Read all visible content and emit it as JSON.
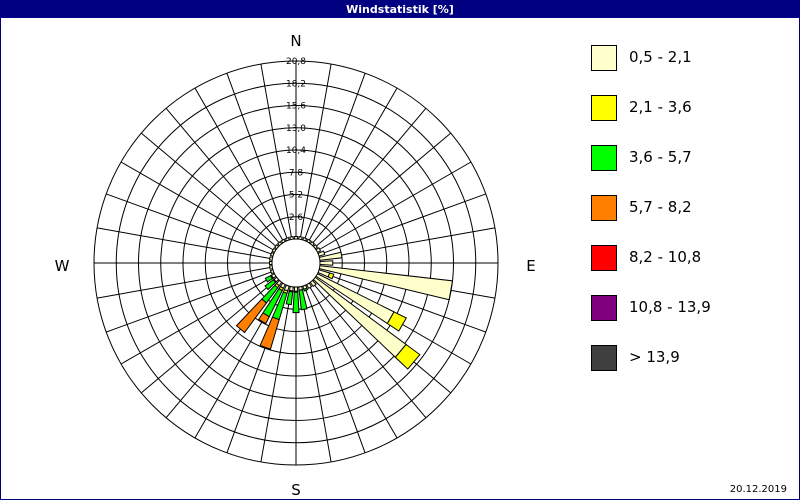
{
  "window": {
    "title": "Windstatistik [%]"
  },
  "footer": {
    "date": "20.12.2019"
  },
  "chart_data": {
    "type": "windrose",
    "title": "Windstatistik [%]",
    "directions": [
      "N",
      "E",
      "S",
      "W"
    ],
    "radial_ticks": [
      "2,6",
      "5,2",
      "7,8",
      "10,4",
      "13,0",
      "15,6",
      "18,2",
      "20,8"
    ],
    "rmax": 20.8,
    "speed_classes": [
      {
        "label": "0,5 - 2,1",
        "color": "#ffffcc"
      },
      {
        "label": "2,1 - 3,6",
        "color": "#ffff00"
      },
      {
        "label": "3,6 - 5,7",
        "color": "#00ff00"
      },
      {
        "label": "5,7 - 8,2",
        "color": "#ff8000"
      },
      {
        "label": "8,2 - 10,8",
        "color": "#ff0000"
      },
      {
        "label": "10,8 - 13,9",
        "color": "#800080"
      },
      {
        "label": " > 13,9",
        "color": "#404040"
      }
    ],
    "sectors": [
      {
        "direction": 0,
        "values": [
          0.3,
          0,
          0,
          0,
          0,
          0,
          0
        ]
      },
      {
        "direction": 10,
        "values": [
          0.3,
          0,
          0,
          0,
          0,
          0,
          0
        ]
      },
      {
        "direction": 20,
        "values": [
          0.3,
          0,
          0,
          0,
          0,
          0,
          0
        ]
      },
      {
        "direction": 30,
        "values": [
          0.3,
          0,
          0,
          0,
          0,
          0,
          0
        ]
      },
      {
        "direction": 40,
        "values": [
          0.3,
          0,
          0,
          0,
          0,
          0,
          0
        ]
      },
      {
        "direction": 50,
        "values": [
          0.3,
          0,
          0,
          0,
          0,
          0,
          0
        ]
      },
      {
        "direction": 60,
        "values": [
          0.4,
          0,
          0,
          0,
          0,
          0,
          0
        ]
      },
      {
        "direction": 70,
        "values": [
          0.7,
          0,
          0,
          0,
          0,
          0,
          0
        ]
      },
      {
        "direction": 80,
        "values": [
          2.6,
          0,
          0,
          0,
          0,
          0,
          0
        ]
      },
      {
        "direction": 90,
        "values": [
          1.5,
          0,
          0,
          0,
          0,
          0,
          0
        ]
      },
      {
        "direction": 100,
        "values": [
          15.6,
          0,
          0,
          0,
          0,
          0,
          0
        ]
      },
      {
        "direction": 110,
        "values": [
          1.3,
          0.5,
          0,
          0,
          0,
          0,
          0
        ]
      },
      {
        "direction": 120,
        "values": [
          10.0,
          1.6,
          0,
          0,
          0,
          0,
          0
        ]
      },
      {
        "direction": 130,
        "values": [
          13.2,
          2.0,
          0,
          0,
          0,
          0,
          0
        ]
      },
      {
        "direction": 140,
        "values": [
          0.6,
          0,
          0,
          0,
          0,
          0,
          0
        ]
      },
      {
        "direction": 150,
        "values": [
          0.5,
          0,
          0,
          0,
          0,
          0,
          0
        ]
      },
      {
        "direction": 160,
        "values": [
          0.4,
          0,
          0.2,
          0,
          0,
          0,
          0
        ]
      },
      {
        "direction": 170,
        "values": [
          0.4,
          0,
          2.3,
          0,
          0,
          0,
          0
        ]
      },
      {
        "direction": 180,
        "values": [
          0.5,
          0.1,
          2.4,
          0,
          0,
          0,
          0
        ]
      },
      {
        "direction": 190,
        "values": [
          0.5,
          0.1,
          1.5,
          0,
          0,
          0,
          0
        ]
      },
      {
        "direction": 200,
        "values": [
          0.6,
          0.3,
          3.2,
          3.6,
          0,
          0,
          0
        ]
      },
      {
        "direction": 210,
        "values": [
          0.5,
          0.3,
          3.4,
          0.9,
          0,
          0,
          0
        ]
      },
      {
        "direction": 220,
        "values": [
          0.5,
          0.3,
          2.2,
          4.3,
          0,
          0,
          0
        ]
      },
      {
        "direction": 230,
        "values": [
          0.4,
          0.1,
          1.2,
          0,
          0,
          0,
          0
        ]
      },
      {
        "direction": 240,
        "values": [
          0.4,
          0.1,
          0.7,
          0,
          0,
          0,
          0
        ]
      },
      {
        "direction": 250,
        "values": [
          0.3,
          0,
          0,
          0,
          0,
          0,
          0
        ]
      },
      {
        "direction": 260,
        "values": [
          0.3,
          0,
          0,
          0,
          0,
          0,
          0
        ]
      },
      {
        "direction": 270,
        "values": [
          0.3,
          0,
          0,
          0,
          0,
          0,
          0
        ]
      },
      {
        "direction": 280,
        "values": [
          0.3,
          0,
          0,
          0,
          0,
          0,
          0
        ]
      },
      {
        "direction": 290,
        "values": [
          0.3,
          0,
          0,
          0,
          0,
          0,
          0
        ]
      },
      {
        "direction": 300,
        "values": [
          0.3,
          0,
          0,
          0,
          0,
          0,
          0
        ]
      },
      {
        "direction": 310,
        "values": [
          0.3,
          0,
          0,
          0,
          0,
          0,
          0
        ]
      },
      {
        "direction": 320,
        "values": [
          0.3,
          0,
          0,
          0,
          0,
          0,
          0
        ]
      },
      {
        "direction": 330,
        "values": [
          0.3,
          0,
          0,
          0,
          0,
          0,
          0
        ]
      },
      {
        "direction": 340,
        "values": [
          0.3,
          0,
          0,
          0,
          0,
          0,
          0
        ]
      },
      {
        "direction": 350,
        "values": [
          0.3,
          0,
          0,
          0,
          0,
          0,
          0
        ]
      }
    ]
  }
}
